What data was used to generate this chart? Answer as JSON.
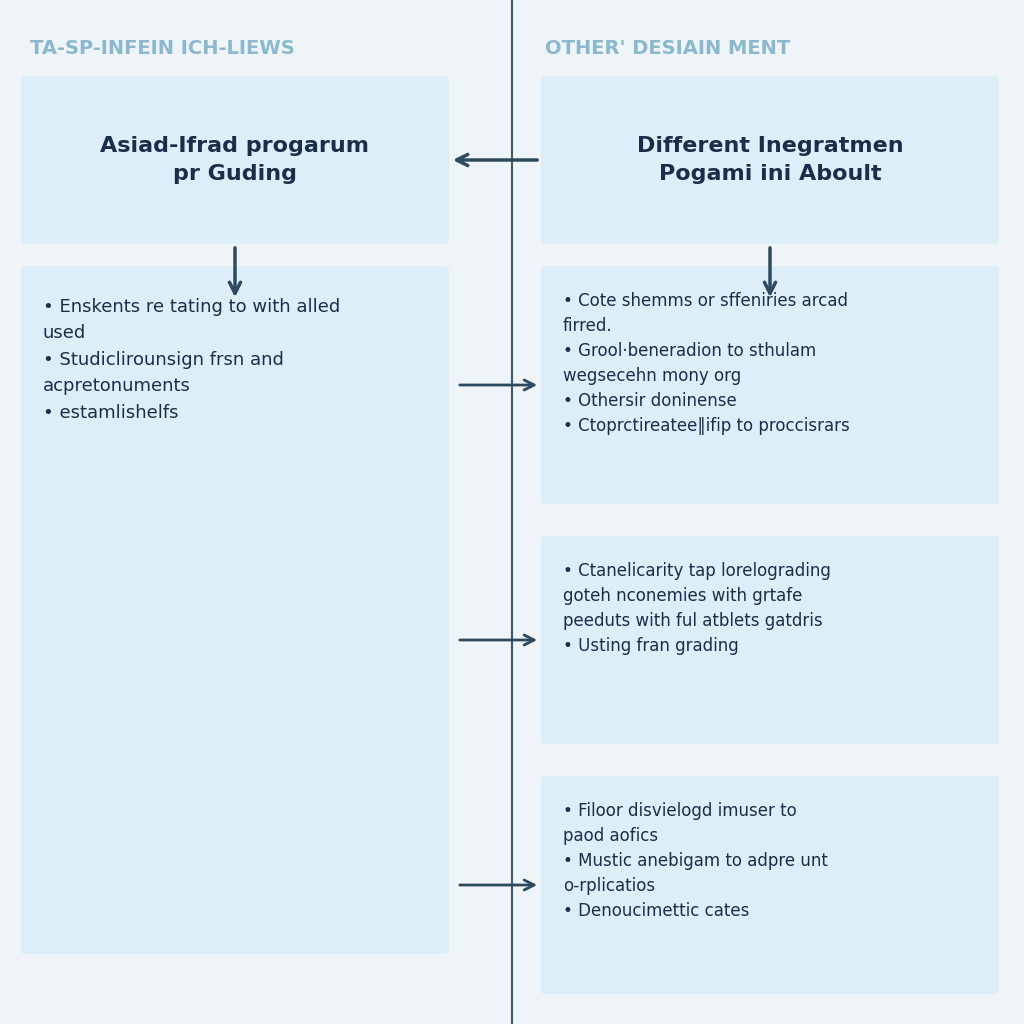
{
  "title_left": "TA-SP-INFEIN ICH-LIEWS",
  "title_right": "OTHER' DESIAIN MENT",
  "title_color": "#8bb8cc",
  "divider_color": "#3d5a6e",
  "background": "#eef4f8",
  "box_color": "#ddeef8",
  "text_color": "#1a2e4a",
  "arrow_color": "#2d4a5e",
  "left_header": "Asiad-Ifrad progarum\npr Guding",
  "right_header": "Different Inegratmen\nPogami ini Aboult",
  "left_bullets": [
    "Enskents re tating to with alled\nused",
    "Studiclirounsign frsn and\nacpretonuments",
    "estamlishelfs"
  ],
  "right_bullets_1": [
    "Cote shemms or sffeniries arcad\nfirred.",
    "Grool·beneradion to sthulam\nwegsecehn mony org",
    "Othersir doninense",
    "Ctoprctireatee‖ifip to proccisrars"
  ],
  "right_bullets_2": [
    "Ctanelicarity tap lorelograding\ngoteh nconemies with grtafe\npeeduts with ful atblets gatdris",
    "Usting fran grading"
  ],
  "right_bullets_3": [
    "Filoor disvielogd imuser to\npaod aofics",
    "Mustic anebigam to adpre unt\no-rplicatios",
    "Denoucimettic cates"
  ],
  "figsize": [
    10.24,
    10.24
  ],
  "dpi": 100
}
